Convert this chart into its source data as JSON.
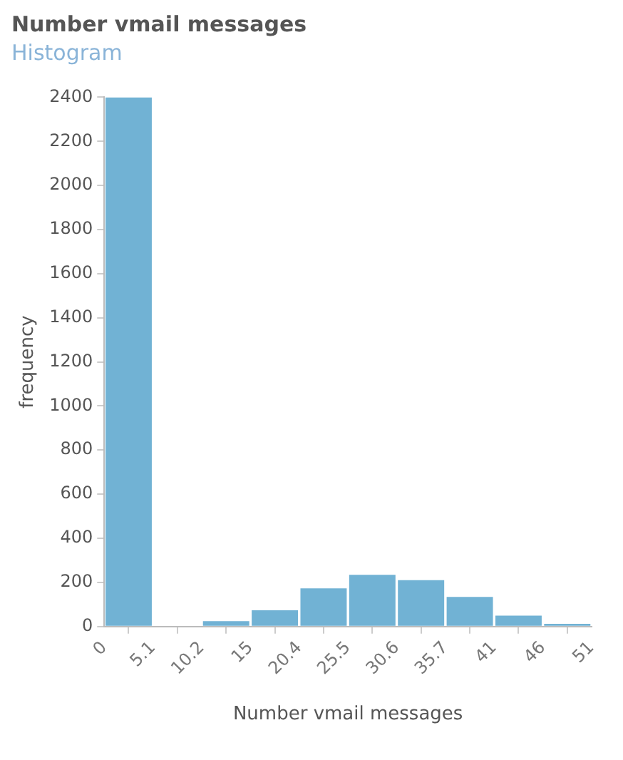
{
  "chart_data": {
    "type": "histogram",
    "title": "Number vmail messages",
    "subtitle": "Histogram",
    "xlabel": "Number vmail messages",
    "ylabel": "frequency",
    "bins": [
      0,
      5.1,
      10.2,
      15.3,
      20.4,
      25.5,
      30.6,
      35.7,
      40.8,
      45.9,
      51
    ],
    "values": [
      2400,
      3,
      24,
      73,
      173,
      234,
      210,
      134,
      49,
      12
    ],
    "color": "#71b2d4",
    "xlim": [
      0,
      51
    ],
    "xticks": [
      0,
      5.1,
      10.2,
      {
        "value": 15.3,
        "label": "15"
      },
      20.4,
      25.5,
      30.6,
      35.7,
      {
        "value": 40.8,
        "label": "41"
      },
      {
        "value": 45.9,
        "label": "46"
      },
      51
    ],
    "ylim": [
      0,
      2400
    ],
    "yticks": [
      0,
      200,
      400,
      600,
      800,
      1000,
      1200,
      1400,
      1600,
      1800,
      2000,
      2200,
      2400
    ],
    "grid": false,
    "legend": false
  }
}
